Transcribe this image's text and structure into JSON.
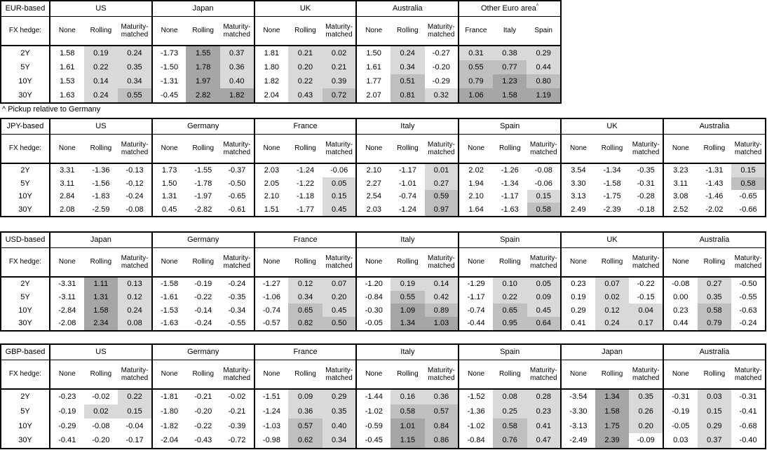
{
  "labels": {
    "fx_hedge": "FX hedge:",
    "footnote": "^ Pickup relative to Germany"
  },
  "row_labels": [
    "2Y",
    "5Y",
    "10Y",
    "30Y"
  ],
  "shading": {
    "bins": [
      {
        "min": 1.0,
        "color": "#a6a6a6"
      },
      {
        "min": 0.5,
        "color": "#bfbfbf"
      },
      {
        "min": 0.0,
        "color": "#d9d9d9"
      }
    ]
  },
  "tables": [
    {
      "base": "EUR-based",
      "groups": [
        {
          "name": "US",
          "cols": [
            "None",
            "Rolling",
            "Maturity-matched"
          ],
          "shade_cols": [
            1,
            2
          ],
          "rows": [
            [
              "1.58",
              "0.19",
              "0.24"
            ],
            [
              "1.61",
              "0.22",
              "0.35"
            ],
            [
              "1.53",
              "0.14",
              "0.34"
            ],
            [
              "1.63",
              "0.24",
              "0.55"
            ]
          ]
        },
        {
          "name": "Japan",
          "cols": [
            "None",
            "Rolling",
            "Maturity-matched"
          ],
          "shade_cols": [
            1,
            2
          ],
          "rows": [
            [
              "-1.73",
              "1.55",
              "0.37"
            ],
            [
              "-1.50",
              "1.78",
              "0.36"
            ],
            [
              "-1.31",
              "1.97",
              "0.40"
            ],
            [
              "-0.45",
              "2.82",
              "1.82"
            ]
          ]
        },
        {
          "name": "UK",
          "cols": [
            "None",
            "Rolling",
            "Maturity-matched"
          ],
          "shade_cols": [
            1,
            2
          ],
          "rows": [
            [
              "1.81",
              "0.21",
              "0.02"
            ],
            [
              "1.80",
              "0.20",
              "0.21"
            ],
            [
              "1.82",
              "0.22",
              "0.39"
            ],
            [
              "2.04",
              "0.43",
              "0.72"
            ]
          ]
        },
        {
          "name": "Australia",
          "cols": [
            "None",
            "Rolling",
            "Maturity-matched"
          ],
          "shade_cols": [
            1,
            2
          ],
          "rows": [
            [
              "1.50",
              "0.24",
              "-0.27"
            ],
            [
              "1.61",
              "0.34",
              "-0.20"
            ],
            [
              "1.77",
              "0.51",
              "-0.29"
            ],
            [
              "2.07",
              "0.81",
              "0.32"
            ]
          ]
        },
        {
          "name": "Other Euro area",
          "sup": "^",
          "cols": [
            "France",
            "Italy",
            "Spain"
          ],
          "shade_cols": [
            0,
            1,
            2
          ],
          "rows": [
            [
              "0.31",
              "0.38",
              "0.29"
            ],
            [
              "0.55",
              "0.77",
              "0.44"
            ],
            [
              "0.79",
              "1.23",
              "0.80"
            ],
            [
              "1.06",
              "1.58",
              "1.19"
            ]
          ]
        }
      ]
    },
    {
      "base": "JPY-based",
      "groups": [
        {
          "name": "US",
          "cols": [
            "None",
            "Rolling",
            "Maturity-matched"
          ],
          "shade_cols": [
            1,
            2
          ],
          "rows": [
            [
              "3.31",
              "-1.36",
              "-0.13"
            ],
            [
              "3.11",
              "-1.56",
              "-0.12"
            ],
            [
              "2.84",
              "-1.83",
              "-0.24"
            ],
            [
              "2.08",
              "-2.59",
              "-0.08"
            ]
          ]
        },
        {
          "name": "Germany",
          "cols": [
            "None",
            "Rolling",
            "Maturity-matched"
          ],
          "shade_cols": [
            1,
            2
          ],
          "rows": [
            [
              "1.73",
              "-1.55",
              "-0.37"
            ],
            [
              "1.50",
              "-1.78",
              "-0.50"
            ],
            [
              "1.31",
              "-1.97",
              "-0.65"
            ],
            [
              "0.45",
              "-2.82",
              "-0.61"
            ]
          ]
        },
        {
          "name": "France",
          "cols": [
            "None",
            "Rolling",
            "Maturity-matched"
          ],
          "shade_cols": [
            1,
            2
          ],
          "rows": [
            [
              "2.03",
              "-1.24",
              "-0.06"
            ],
            [
              "2.05",
              "-1.22",
              "0.05"
            ],
            [
              "2.10",
              "-1.18",
              "0.15"
            ],
            [
              "1.51",
              "-1.77",
              "0.45"
            ]
          ]
        },
        {
          "name": "Italy",
          "cols": [
            "None",
            "Rolling",
            "Maturity-matched"
          ],
          "shade_cols": [
            1,
            2
          ],
          "rows": [
            [
              "2.10",
              "-1.17",
              "0.01"
            ],
            [
              "2.27",
              "-1.01",
              "0.27"
            ],
            [
              "2.54",
              "-0.74",
              "0.59"
            ],
            [
              "2.03",
              "-1.24",
              "0.97"
            ]
          ]
        },
        {
          "name": "Spain",
          "cols": [
            "None",
            "Rolling",
            "Maturity-matched"
          ],
          "shade_cols": [
            1,
            2
          ],
          "rows": [
            [
              "2.02",
              "-1.26",
              "-0.08"
            ],
            [
              "1.94",
              "-1.34",
              "-0.06"
            ],
            [
              "2.10",
              "-1.17",
              "0.15"
            ],
            [
              "1.64",
              "-1.63",
              "0.58"
            ]
          ]
        },
        {
          "name": "UK",
          "cols": [
            "None",
            "Rolling",
            "Maturity-matched"
          ],
          "shade_cols": [
            1,
            2
          ],
          "rows": [
            [
              "3.54",
              "-1.34",
              "-0.35"
            ],
            [
              "3.30",
              "-1.58",
              "-0.31"
            ],
            [
              "3.13",
              "-1.75",
              "-0.28"
            ],
            [
              "2.49",
              "-2.39",
              "-0.18"
            ]
          ]
        },
        {
          "name": "Australia",
          "cols": [
            "None",
            "Rolling",
            "Maturity-matched"
          ],
          "shade_cols": [
            1,
            2
          ],
          "rows": [
            [
              "3.23",
              "-1.31",
              "0.15"
            ],
            [
              "3.11",
              "-1.43",
              "0.58"
            ],
            [
              "3.08",
              "-1.46",
              "-0.65"
            ],
            [
              "2.52",
              "-2.02",
              "-0.66"
            ]
          ]
        }
      ]
    },
    {
      "base": "USD-based",
      "groups": [
        {
          "name": "Japan",
          "cols": [
            "None",
            "Rolling",
            "Maturity-matched"
          ],
          "shade_cols": [
            1,
            2
          ],
          "rows": [
            [
              "-3.31",
              "1.11",
              "0.13"
            ],
            [
              "-3.11",
              "1.31",
              "0.12"
            ],
            [
              "-2.84",
              "1.58",
              "0.24"
            ],
            [
              "-2.08",
              "2.34",
              "0.08"
            ]
          ]
        },
        {
          "name": "Germany",
          "cols": [
            "None",
            "Rolling",
            "Maturity-matched"
          ],
          "shade_cols": [
            1,
            2
          ],
          "rows": [
            [
              "-1.58",
              "-0.19",
              "-0.24"
            ],
            [
              "-1.61",
              "-0.22",
              "-0.35"
            ],
            [
              "-1.53",
              "-0.14",
              "-0.34"
            ],
            [
              "-1.63",
              "-0.24",
              "-0.55"
            ]
          ]
        },
        {
          "name": "France",
          "cols": [
            "None",
            "Rolling",
            "Maturity-matched"
          ],
          "shade_cols": [
            1,
            2
          ],
          "rows": [
            [
              "-1.27",
              "0.12",
              "0.07"
            ],
            [
              "-1.06",
              "0.34",
              "0.20"
            ],
            [
              "-0.74",
              "0.65",
              "0.45"
            ],
            [
              "-0.57",
              "0.82",
              "0.50"
            ]
          ]
        },
        {
          "name": "Italy",
          "cols": [
            "None",
            "Rolling",
            "Maturity-matched"
          ],
          "shade_cols": [
            1,
            2
          ],
          "rows": [
            [
              "-1.20",
              "0.19",
              "0.14"
            ],
            [
              "-0.84",
              "0.55",
              "0.42"
            ],
            [
              "-0.30",
              "1.09",
              "0.89"
            ],
            [
              "-0.05",
              "1.34",
              "1.03"
            ]
          ]
        },
        {
          "name": "Spain",
          "cols": [
            "None",
            "Rolling",
            "Maturity-matched"
          ],
          "shade_cols": [
            1,
            2
          ],
          "rows": [
            [
              "-1.29",
              "0.10",
              "0.05"
            ],
            [
              "-1.17",
              "0.22",
              "0.09"
            ],
            [
              "-0.74",
              "0.65",
              "0.45"
            ],
            [
              "-0.44",
              "0.95",
              "0.64"
            ]
          ]
        },
        {
          "name": "UK",
          "cols": [
            "None",
            "Rolling",
            "Maturity-matched"
          ],
          "shade_cols": [
            1,
            2
          ],
          "rows": [
            [
              "0.23",
              "0.07",
              "-0.22"
            ],
            [
              "0.19",
              "0.02",
              "-0.15"
            ],
            [
              "0.29",
              "0.12",
              "0.04"
            ],
            [
              "0.41",
              "0.24",
              "0.17"
            ]
          ]
        },
        {
          "name": "Australia",
          "cols": [
            "None",
            "Rolling",
            "Maturity-matched"
          ],
          "shade_cols": [
            1,
            2
          ],
          "rows": [
            [
              "-0.08",
              "0.27",
              "-0.50"
            ],
            [
              "0.00",
              "0.35",
              "-0.55"
            ],
            [
              "0.23",
              "0.58",
              "-0.63"
            ],
            [
              "0.44",
              "0.79",
              "-0.24"
            ]
          ]
        }
      ]
    },
    {
      "base": "GBP-based",
      "groups": [
        {
          "name": "US",
          "cols": [
            "None",
            "Rolling",
            "Maturity-matched"
          ],
          "shade_cols": [
            1,
            2
          ],
          "rows": [
            [
              "-0.23",
              "-0.02",
              "0.22"
            ],
            [
              "-0.19",
              "0.02",
              "0.15"
            ],
            [
              "-0.29",
              "-0.08",
              "-0.04"
            ],
            [
              "-0.41",
              "-0.20",
              "-0.17"
            ]
          ]
        },
        {
          "name": "Germany",
          "cols": [
            "None",
            "Rolling",
            "Maturity-matched"
          ],
          "shade_cols": [
            1,
            2
          ],
          "rows": [
            [
              "-1.81",
              "-0.21",
              "-0.02"
            ],
            [
              "-1.80",
              "-0.20",
              "-0.21"
            ],
            [
              "-1.82",
              "-0.22",
              "-0.39"
            ],
            [
              "-2.04",
              "-0.43",
              "-0.72"
            ]
          ]
        },
        {
          "name": "France",
          "cols": [
            "None",
            "Rolling",
            "Maturity-matched"
          ],
          "shade_cols": [
            1,
            2
          ],
          "rows": [
            [
              "-1.51",
              "0.09",
              "0.29"
            ],
            [
              "-1.24",
              "0.36",
              "0.35"
            ],
            [
              "-1.03",
              "0.57",
              "0.40"
            ],
            [
              "-0.98",
              "0.62",
              "0.34"
            ]
          ]
        },
        {
          "name": "Italy",
          "cols": [
            "None",
            "Rolling",
            "Maturity-matched"
          ],
          "shade_cols": [
            1,
            2
          ],
          "rows": [
            [
              "-1.44",
              "0.16",
              "0.36"
            ],
            [
              "-1.02",
              "0.58",
              "0.57"
            ],
            [
              "-0.59",
              "1.01",
              "0.84"
            ],
            [
              "-0.45",
              "1.15",
              "0.86"
            ]
          ]
        },
        {
          "name": "Spain",
          "cols": [
            "None",
            "Rolling",
            "Maturity-matched"
          ],
          "shade_cols": [
            1,
            2
          ],
          "rows": [
            [
              "-1.52",
              "0.08",
              "0.28"
            ],
            [
              "-1.36",
              "0.25",
              "0.23"
            ],
            [
              "-1.02",
              "0.58",
              "0.41"
            ],
            [
              "-0.84",
              "0.76",
              "0.47"
            ]
          ]
        },
        {
          "name": "Japan",
          "cols": [
            "None",
            "Rolling",
            "Maturity-matched"
          ],
          "shade_cols": [
            1,
            2
          ],
          "rows": [
            [
              "-3.54",
              "1.34",
              "0.35"
            ],
            [
              "-3.30",
              "1.58",
              "0.26"
            ],
            [
              "-3.13",
              "1.75",
              "0.20"
            ],
            [
              "-2.49",
              "2.39",
              "-0.09"
            ]
          ]
        },
        {
          "name": "Australia",
          "cols": [
            "None",
            "Rolling",
            "Maturity-matched"
          ],
          "shade_cols": [
            1,
            2
          ],
          "rows": [
            [
              "-0.31",
              "0.03",
              "-0.31"
            ],
            [
              "-0.19",
              "0.15",
              "-0.41"
            ],
            [
              "-0.05",
              "0.29",
              "-0.68"
            ],
            [
              "0.03",
              "0.37",
              "-0.40"
            ]
          ]
        }
      ]
    }
  ]
}
